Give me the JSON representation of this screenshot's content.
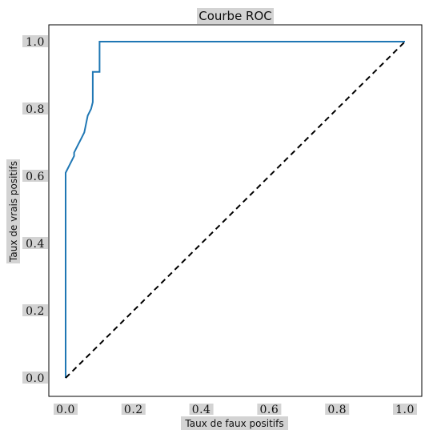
{
  "chart_data": {
    "type": "line",
    "title": "Courbe ROC",
    "xlabel": "Taux de faux positifs",
    "ylabel": "Taux de vrais positifs",
    "xlim": [
      0.0,
      1.0
    ],
    "ylim": [
      0.0,
      1.0
    ],
    "xticks": [
      "0.0",
      "0.2",
      "0.4",
      "0.6",
      "0.8",
      "1.0"
    ],
    "yticks": [
      "0.0",
      "0.2",
      "0.4",
      "0.6",
      "0.8",
      "1.0"
    ],
    "grid": false,
    "series": [
      {
        "color": "#1f77b4",
        "style": "solid",
        "x": [
          0.0,
          0.0,
          0.0,
          0.025,
          0.025,
          0.025,
          0.035,
          0.045,
          0.055,
          0.065,
          0.075,
          0.08,
          0.08,
          0.085,
          0.1,
          0.1,
          0.1,
          1.0
        ],
        "y": [
          0.0,
          0.61,
          0.61,
          0.66,
          0.66,
          0.67,
          0.69,
          0.71,
          0.73,
          0.78,
          0.8,
          0.82,
          0.91,
          0.91,
          0.91,
          0.96,
          1.0,
          1.0
        ]
      },
      {
        "color": "#000000",
        "style": "dashed",
        "x": [
          0.0,
          1.0
        ],
        "y": [
          0.0,
          1.0
        ]
      }
    ]
  }
}
